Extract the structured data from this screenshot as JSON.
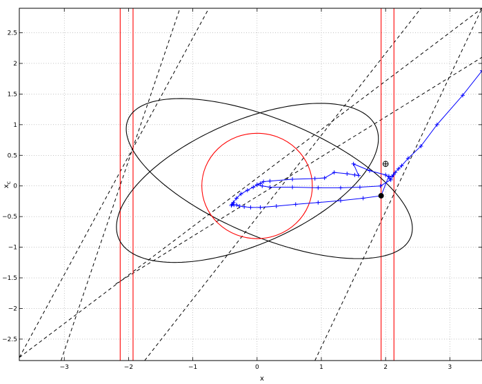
{
  "chart_data": {
    "type": "line",
    "title": "",
    "xlabel": "x",
    "ylabel": "x",
    "ylabel_subscript": "c",
    "xlim": [
      -3.7,
      3.5
    ],
    "ylim": [
      -2.85,
      2.9
    ],
    "grid": true,
    "xticks": [
      -3,
      -2,
      -1,
      0,
      1,
      2,
      3
    ],
    "xtick_labels": [
      "−3",
      "−2",
      "−1",
      "0",
      "1",
      "2",
      "3"
    ],
    "yticks": [
      -2.5,
      -2,
      -1.5,
      -1,
      -0.5,
      0,
      0.5,
      1,
      1.5,
      2,
      2.5
    ],
    "ytick_labels": [
      "−2.5",
      "−2",
      "−1.5",
      "−1",
      "−0.5",
      "0",
      "0.5",
      "1",
      "1.5",
      "2",
      "2.5"
    ],
    "colors": {
      "trajectory": "#0000ff",
      "circle": "#ff0000",
      "vertical": "#ff0000",
      "ellipse": "#000000",
      "dashed": "#000000"
    },
    "vertical_lines_x": [
      -2.13,
      -1.93,
      1.93,
      2.13
    ],
    "circle": {
      "cx": 0,
      "cy": 0,
      "r": 0.86
    },
    "ellipses": [
      {
        "cx": 0.19,
        "cy": 0.12,
        "a": 2.4,
        "b": 0.95,
        "angle_deg": -24
      },
      {
        "cx": -0.15,
        "cy": 0.05,
        "a": 2.2,
        "b": 1.0,
        "angle_deg": 25
      }
    ],
    "dashed_lines": [
      {
        "x": [
          -3.7,
          -0.75
        ],
        "y": [
          -2.8,
          2.9
        ]
      },
      {
        "x": [
          -3.05,
          -1.2
        ],
        "y": [
          -2.85,
          2.9
        ]
      },
      {
        "x": [
          -1.75,
          2.55
        ],
        "y": [
          -2.85,
          2.9
        ]
      },
      {
        "x": [
          -3.7,
          3.5
        ],
        "y": [
          -2.8,
          2.9
        ]
      },
      {
        "x": [
          0.9,
          3.5
        ],
        "y": [
          -2.85,
          2.9
        ]
      },
      {
        "x": [
          -2.2,
          3.5
        ],
        "y": [
          -1.6,
          2.1
        ]
      }
    ],
    "trajectory": {
      "x": [
        3.5,
        3.2,
        2.8,
        2.55,
        2.35,
        2.25,
        2.2,
        2.15,
        2.12,
        2.1,
        2.05,
        1.93,
        1.65,
        1.3,
        0.95,
        0.6,
        0.3,
        0.05,
        -0.1,
        -0.2,
        -0.27,
        -0.32,
        -0.36,
        -0.39,
        -0.4,
        -0.37,
        -0.32,
        -0.25,
        -0.15,
        -0.06,
        0.0,
        0.05,
        0.1,
        0.2,
        0.55,
        0.9,
        1.05,
        1.2,
        1.4,
        1.52,
        1.58,
        1.5,
        1.75,
        2.0,
        2.07,
        2.08,
        1.92,
        1.6,
        1.3,
        0.95,
        0.55,
        0.2,
        0.08,
        0.0
      ],
      "y": [
        1.88,
        1.48,
        1.0,
        0.65,
        0.45,
        0.33,
        0.28,
        0.22,
        0.18,
        0.15,
        0.16,
        -0.16,
        -0.2,
        -0.24,
        -0.27,
        -0.3,
        -0.33,
        -0.35,
        -0.35,
        -0.34,
        -0.33,
        -0.31,
        -0.31,
        -0.3,
        -0.32,
        -0.27,
        -0.2,
        -0.13,
        -0.07,
        -0.02,
        0.02,
        0.04,
        0.07,
        0.08,
        0.11,
        0.12,
        0.13,
        0.22,
        0.2,
        0.18,
        0.17,
        0.36,
        0.25,
        0.18,
        0.12,
        0.1,
        0.0,
        -0.02,
        -0.03,
        -0.03,
        -0.02,
        -0.02,
        0.0,
        0.02
      ]
    },
    "markers": [
      {
        "type": "filled",
        "x": 1.93,
        "y": -0.16
      },
      {
        "type": "circle-plus",
        "x": 2.0,
        "y": 0.36
      }
    ]
  }
}
